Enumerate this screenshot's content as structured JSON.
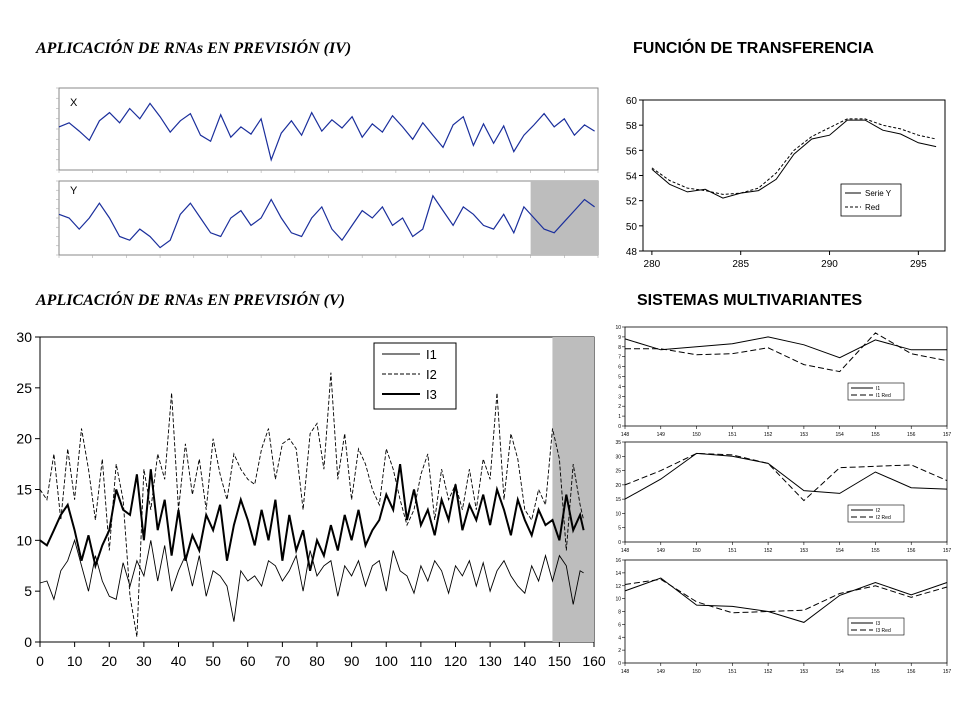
{
  "titles": {
    "iv": "APLICACIÓN DE RNAs EN PREVISIÓN  (IV)",
    "transfer": "FUNCIÓN DE TRANSFERENCIA",
    "v": "APLICACIÓN DE RNAs EN PREVISIÓN  (V)",
    "multi": "SISTEMAS MULTIVARIANTES"
  },
  "chart_data": [
    {
      "id": "x_series",
      "type": "line",
      "panel_label": "X",
      "x": [
        0,
        3,
        6,
        9,
        12,
        15,
        18,
        21,
        24,
        27,
        30,
        33,
        36,
        39,
        42,
        45,
        48,
        51,
        54,
        57,
        60,
        63,
        66,
        69,
        72,
        75,
        78,
        81,
        84,
        87,
        90,
        93,
        96,
        99,
        102,
        105,
        108,
        111,
        114,
        117,
        120,
        123,
        126,
        129,
        132,
        135,
        138,
        141,
        144,
        147,
        150,
        153,
        156,
        159
      ],
      "y": [
        0.2,
        0.6,
        -0.2,
        -1.1,
        0.8,
        1.6,
        0.6,
        2.0,
        1.0,
        2.5,
        1.2,
        -0.3,
        0.8,
        1.5,
        -0.6,
        -1.2,
        1.4,
        -0.8,
        0.2,
        -0.5,
        1.0,
        -3.0,
        -0.4,
        0.8,
        -0.6,
        1.6,
        -0.2,
        0.9,
        0.1,
        1.2,
        -0.8,
        0.5,
        -0.3,
        1.3,
        0.2,
        -1.0,
        0.6,
        -0.6,
        -1.8,
        0.4,
        1.2,
        -1.6,
        0.5,
        -1.4,
        0.3,
        -2.2,
        -0.6,
        0.4,
        1.5,
        0.2,
        1.0,
        -0.6,
        0.4,
        -0.2
      ],
      "ylim": [
        -4,
        4
      ]
    },
    {
      "id": "y_series",
      "type": "line",
      "panel_label": "Y",
      "x": [
        0,
        3,
        6,
        9,
        12,
        15,
        18,
        21,
        24,
        27,
        30,
        33,
        36,
        39,
        42,
        45,
        48,
        51,
        54,
        57,
        60,
        63,
        66,
        69,
        72,
        75,
        78,
        81,
        84,
        87,
        90,
        93,
        96,
        99,
        102,
        105,
        108,
        111,
        114,
        117,
        120,
        123,
        126,
        129,
        132,
        135,
        138,
        141,
        144,
        147,
        150,
        153,
        156,
        159
      ],
      "y": [
        56,
        55,
        52,
        55,
        59,
        55,
        50,
        49,
        52,
        50,
        47,
        49,
        56,
        59,
        55,
        51,
        50,
        55,
        57,
        53,
        55,
        60,
        55,
        51,
        50,
        55,
        58,
        52,
        49,
        53,
        57,
        55,
        58,
        53,
        55,
        50,
        52,
        61,
        57,
        53,
        58,
        56,
        53,
        52,
        56,
        51,
        58,
        55,
        52,
        51,
        54,
        57,
        60,
        58
      ],
      "ylim": [
        45,
        65
      ],
      "shaded_x": [
        140,
        160
      ]
    },
    {
      "id": "transfer",
      "type": "line",
      "x": [
        280,
        281,
        282,
        283,
        284,
        285,
        286,
        287,
        288,
        289,
        290,
        291,
        292,
        293,
        294,
        295,
        296
      ],
      "series": [
        {
          "name": "Serie Y",
          "values": [
            54.5,
            53.3,
            52.7,
            52.9,
            52.2,
            52.6,
            52.8,
            53.7,
            55.7,
            56.9,
            57.2,
            58.4,
            58.4,
            57.6,
            57.3,
            56.6,
            56.3
          ]
        },
        {
          "name": "Red",
          "values": [
            54.6,
            53.6,
            53.0,
            52.8,
            52.5,
            52.6,
            53.0,
            54.2,
            56.0,
            57.1,
            57.8,
            58.5,
            58.5,
            58.0,
            57.7,
            57.2,
            56.9
          ]
        }
      ],
      "xticks": [
        "280",
        "285",
        "290",
        "295"
      ],
      "yticks": [
        "48",
        "50",
        "52",
        "54",
        "56",
        "58",
        "60"
      ],
      "xlim": [
        279.5,
        296.5
      ],
      "ylim": [
        48,
        60
      ],
      "legend": "bottom-right"
    },
    {
      "id": "multivariate_main",
      "type": "line",
      "x": [
        0,
        2,
        4,
        6,
        8,
        10,
        12,
        14,
        16,
        18,
        20,
        22,
        24,
        26,
        28,
        30,
        32,
        34,
        36,
        38,
        40,
        42,
        44,
        46,
        48,
        50,
        52,
        54,
        56,
        58,
        60,
        62,
        64,
        66,
        68,
        70,
        72,
        74,
        76,
        78,
        80,
        82,
        84,
        86,
        88,
        90,
        92,
        94,
        96,
        98,
        100,
        102,
        104,
        106,
        108,
        110,
        112,
        114,
        116,
        118,
        120,
        122,
        124,
        126,
        128,
        130,
        132,
        134,
        136,
        138,
        140,
        142,
        144,
        146,
        148,
        150,
        152,
        154,
        156,
        157
      ],
      "series": [
        {
          "name": "I1",
          "values": [
            5.8,
            6,
            4.2,
            7,
            8,
            10,
            7.5,
            5,
            8.5,
            6,
            4.5,
            4.2,
            7.8,
            5.5,
            8,
            6.5,
            10,
            6,
            9.5,
            5,
            7,
            8.5,
            5.5,
            8.5,
            4.5,
            7,
            6.5,
            5.5,
            2,
            7,
            6,
            6.5,
            5.5,
            8,
            7.5,
            6,
            7,
            8.5,
            5,
            9,
            6.5,
            7.5,
            8,
            4.5,
            7.5,
            6.5,
            8,
            5.5,
            7.5,
            8,
            5,
            9,
            7,
            6.5,
            4.8,
            7.5,
            6,
            8,
            7,
            4.8,
            7.5,
            6.5,
            8,
            5.5,
            7.8,
            5,
            7,
            8,
            6.5,
            5.5,
            4.8,
            7.5,
            6,
            8.5,
            6,
            8.5,
            7.5,
            3.7,
            7,
            6.8
          ]
        },
        {
          "name": "I2",
          "values": [
            15,
            14,
            18.5,
            12,
            19,
            14,
            21,
            17,
            12,
            18,
            9,
            17.5,
            14,
            4.5,
            0.5,
            17,
            13,
            18.5,
            16,
            24.5,
            13,
            19.5,
            14.5,
            18,
            13,
            20,
            16.5,
            14,
            18.5,
            17,
            16,
            15.5,
            19,
            21,
            16,
            19.5,
            20,
            19,
            13,
            20.5,
            21.5,
            17,
            26.5,
            16,
            20.5,
            14,
            19,
            17.5,
            15,
            13.5,
            19,
            17,
            14,
            11.5,
            13,
            16.5,
            18.5,
            12,
            17,
            14,
            15.5,
            13,
            17,
            13,
            18,
            16,
            24.5,
            14,
            20.5,
            18,
            13,
            12,
            15,
            13.5,
            21,
            18,
            9,
            17.5,
            13.5,
            12
          ]
        },
        {
          "name": "I3",
          "values": [
            10,
            9.5,
            11,
            12.5,
            13.5,
            11,
            8,
            10.5,
            7.5,
            9.5,
            11,
            15,
            13,
            12.5,
            16.5,
            10,
            17,
            11,
            14,
            8.5,
            13,
            8,
            10.5,
            9,
            12.5,
            11,
            13.5,
            8,
            11.5,
            14,
            12,
            9.5,
            13,
            10,
            14,
            8,
            12.5,
            9,
            11,
            7,
            10,
            8.5,
            11.5,
            9,
            12.5,
            10,
            13,
            9.5,
            11,
            12,
            14.5,
            13,
            17.5,
            12,
            15,
            11.5,
            13,
            10.5,
            14,
            12,
            15.5,
            11,
            13.5,
            12,
            14.5,
            11.5,
            15,
            13,
            10.5,
            14,
            12,
            10.5,
            13,
            11.5,
            12,
            10,
            14.5,
            11,
            12.5,
            11
          ]
        }
      ],
      "xticks": [
        "0",
        "10",
        "20",
        "30",
        "40",
        "50",
        "60",
        "70",
        "80",
        "90",
        "100",
        "110",
        "120",
        "130",
        "140",
        "150",
        "160"
      ],
      "yticks": [
        "0",
        "5",
        "10",
        "15",
        "20",
        "25",
        "30"
      ],
      "xlim": [
        0,
        160
      ],
      "ylim": [
        0,
        30
      ],
      "shaded_x": [
        148,
        160
      ],
      "legend": "top-right"
    },
    {
      "id": "multi_small_1",
      "type": "line",
      "x": [
        "148",
        "149",
        "150",
        "151",
        "152",
        "153",
        "154",
        "155",
        "156",
        "157"
      ],
      "series": [
        {
          "name": "I1",
          "values": [
            8.8,
            7.7,
            8.0,
            8.3,
            9.0,
            8.2,
            6.9,
            8.7,
            7.7,
            7.7
          ]
        },
        {
          "name": "I1 Red",
          "values": [
            7.8,
            7.8,
            7.2,
            7.3,
            7.9,
            6.2,
            5.5,
            9.4,
            7.3,
            6.6
          ]
        }
      ],
      "yticks": [
        "0",
        "1",
        "2",
        "3",
        "4",
        "5",
        "6",
        "7",
        "8",
        "9",
        "10"
      ],
      "ylim": [
        0,
        10
      ],
      "legend": "bottom-right"
    },
    {
      "id": "multi_small_2",
      "type": "line",
      "x": [
        "148",
        "149",
        "150",
        "151",
        "152",
        "153",
        "154",
        "155",
        "156",
        "157"
      ],
      "series": [
        {
          "name": "I2",
          "values": [
            15,
            22,
            31,
            30,
            27.5,
            18,
            17,
            24.5,
            19,
            18.5
          ]
        },
        {
          "name": "I2 Red",
          "values": [
            20,
            25,
            31,
            30.5,
            27.5,
            14.5,
            26,
            26.5,
            27,
            21.5
          ]
        }
      ],
      "yticks": [
        "0",
        "5",
        "10",
        "15",
        "20",
        "25",
        "30",
        "35"
      ],
      "ylim": [
        0,
        35
      ],
      "legend": "bottom-right"
    },
    {
      "id": "multi_small_3",
      "type": "line",
      "x": [
        "148",
        "149",
        "150",
        "151",
        "152",
        "153",
        "154",
        "155",
        "156",
        "157"
      ],
      "series": [
        {
          "name": "I3",
          "values": [
            11.2,
            13.2,
            9,
            8.8,
            8,
            6.3,
            10.5,
            12.5,
            10.6,
            12.5
          ]
        },
        {
          "name": "I3 Red",
          "values": [
            12.2,
            13,
            9.5,
            7.8,
            8,
            8.2,
            10.8,
            12,
            10.2,
            11.8
          ]
        }
      ],
      "yticks": [
        "0",
        "2",
        "4",
        "6",
        "8",
        "10",
        "12",
        "14",
        "16"
      ],
      "ylim": [
        0,
        16
      ],
      "legend": "bottom-right"
    }
  ]
}
